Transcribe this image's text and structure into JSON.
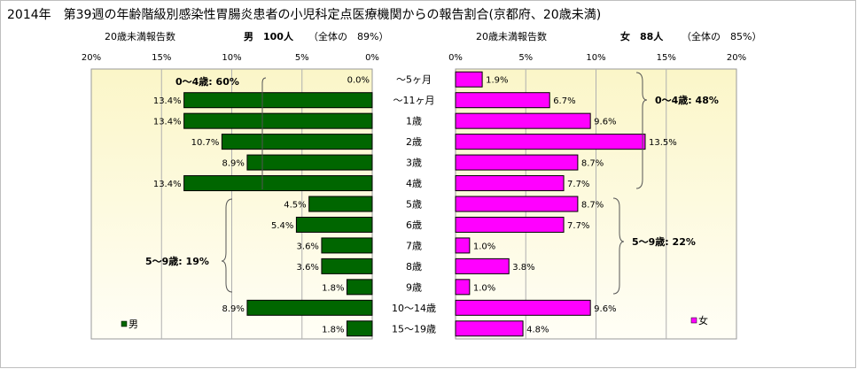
{
  "title": "2014年　第39週の年齢階級別感染性胃腸炎患者の小児科定点医療機関からの報告割合(京都府、20歳未満)",
  "colors": {
    "male": "#006600",
    "female": "#ff00ff",
    "panel_bg_top": "#fbf6c8",
    "panel_bg_bottom": "#fffef6"
  },
  "left_panel": {
    "subtitle_left": "20歳未満報告数",
    "subtitle_sex": "男　100人",
    "subtitle_total": "（全体の　89%）",
    "legend": "男",
    "group_labels": [
      "0～4歳: 60%",
      "5～9歳: 19%"
    ]
  },
  "right_panel": {
    "subtitle_left": "20歳未満報告数",
    "subtitle_sex": "女　88人",
    "subtitle_total": "（全体の　85%）",
    "legend": "女",
    "group_labels": [
      "0～4歳: 48%",
      "5～9歳: 22%"
    ]
  },
  "chart_data": {
    "type": "bar",
    "orientation": "horizontal",
    "layout": "population-pyramid",
    "categories": [
      "～5ヶ月",
      "～11ヶ月",
      "1歳",
      "2歳",
      "3歳",
      "4歳",
      "5歳",
      "6歳",
      "7歳",
      "8歳",
      "9歳",
      "10～14歳",
      "15～19歳"
    ],
    "xlim": [
      0,
      20
    ],
    "xticks": [
      "0%",
      "5%",
      "10%",
      "15%",
      "20%"
    ],
    "series": [
      {
        "name": "男",
        "values": [
          0.0,
          13.4,
          13.4,
          10.7,
          8.9,
          13.4,
          4.5,
          5.4,
          3.6,
          3.6,
          1.8,
          8.9,
          1.8
        ],
        "labels": [
          "0.0%",
          "13.4%",
          "13.4%",
          "10.7%",
          "8.9%",
          "13.4%",
          "4.5%",
          "5.4%",
          "3.6%",
          "3.6%",
          "1.8%",
          "8.9%",
          "1.8%"
        ]
      },
      {
        "name": "女",
        "values": [
          1.9,
          6.7,
          9.6,
          13.5,
          8.7,
          7.7,
          8.7,
          7.7,
          1.0,
          3.8,
          1.0,
          9.6,
          4.8
        ],
        "labels": [
          "1.9%",
          "6.7%",
          "9.6%",
          "13.5%",
          "8.7%",
          "7.7%",
          "8.7%",
          "7.7%",
          "1.0%",
          "3.8%",
          "1.0%",
          "9.6%",
          "4.8%"
        ]
      }
    ]
  }
}
